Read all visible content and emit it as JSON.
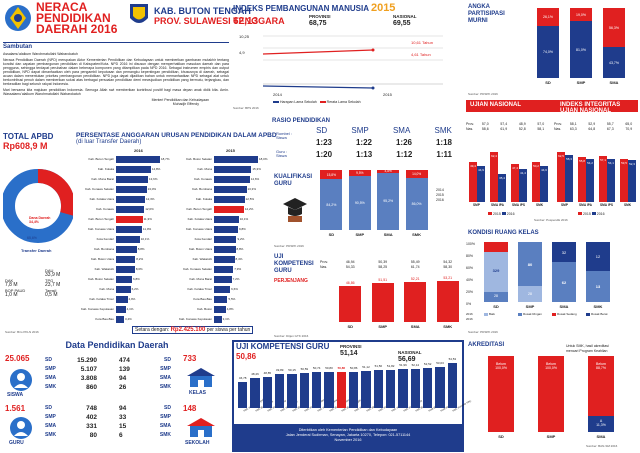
{
  "header": {
    "title_lines": [
      "NERACA",
      "PENDIDIKAN",
      "DAERAH 2016"
    ],
    "region": "KAB. BUTON TENGAH",
    "province": "PROV. SULAWESI TENGGARA"
  },
  "sambutan": {
    "title": "Sambutan",
    "greeting": "Assalamu'alaikum Warohmatullahi Wabarokatuh",
    "body": "Neraca Pendidikan Daerah (NPD) merupakan Aktor Kementerian Pendidikan dan Kebudayaan untuk memberikan gambaran mutakhir tentang kondisi dan capaian pembangunan pendidikan di Kabupaten/Kota. NPD 2016 ini disusun dengan memperhatikan masukan daerah dan para pengguna, sehingga terdapat perubahan dalam beberapa komponen yang ditampilkan pada NPD 2016. Sebagai instrumen empiris dan output pendidikan, NPD dapat dimanfaatkan oleh para pengambil keputusan dan pemangku kepentingan pendidikan, khususnya di daerah, sebagai acuan dalam menentukan prioritas pembangunan pendidikan. NPD juga dapat dijadikan bahan untuk memanfaatkan NPD sebagai alat untuk berkontribusi penuh dalam memberikan solusi atas berbagai persoalan pendidikan demi mewujudkan pendidikan yang bermutu, terjangkau, dan berkeadilan bagi seluruh rakyat Indonesia.",
    "closing": "Mari bersama kita majukan pendidikan Indonesia. Semoga Allah swt memberikan kontribusi positif bagi masa depan anak didik kita. Amin. Wassalamu'alaikum Warohmatullahi Wabarokatuh",
    "signature_1": "Menteri Pendidikan dan Kebudayaan",
    "signature_2": "Muhadjir Effendy"
  },
  "ipm": {
    "title": "INDEKS PEMBANGUNAN MANUSIA",
    "year": "2015",
    "kab_value": "62,13",
    "prov_label": "PROVINSI",
    "prov_value": "68,75",
    "nas_label": "NASIONAL",
    "nas_value": "69,55",
    "y_top": "10,25",
    "y_bottom": "4,9",
    "pt_a": "10,61",
    "pt_a_unit": "Tahun",
    "pt_b": "4,61",
    "pt_b_unit": "Tahun",
    "x_labels": [
      "2014",
      "2015"
    ],
    "legend": [
      "Harapan Lama Sekolah",
      "Rerata Lama Sekolah"
    ],
    "source": "Sumber: BPS 2016"
  },
  "apm": {
    "title_lines": [
      "ANGKA",
      "PARTISIPASI",
      "MURNI"
    ],
    "categories": [
      "SD",
      "SMP",
      "SMA"
    ],
    "top_labels": [
      "26,1%",
      "19,0%",
      "56,3%"
    ],
    "bottom_labels": [
      "74,0%",
      "81,0%",
      "43,7%"
    ],
    "source": "Sumber: PDSPK 2016"
  },
  "apbd": {
    "title": "TOTAL APBD",
    "value": "Rp608,9 M",
    "donut_top_label": "Dana Daerah",
    "donut_top_pct": "34,4%",
    "donut_bottom_label": "Transfer Daerah",
    "donut_bottom_pct": "65,6%",
    "rows": [
      {
        "label": "DAK",
        "value": "7,8 M"
      },
      {
        "label": "BOP PAUD",
        "value": "1,0 M"
      },
      {
        "label": "DAU",
        "value": "33,9 M"
      },
      {
        "label": "TPG",
        "value": "23,7 M"
      },
      {
        "label": "Tamsil",
        "value": "0,5 M"
      }
    ],
    "source": "Sumber: Biro PKLN 2016"
  },
  "persentase": {
    "title": "PERSENTASE ANGGARAN URUSAN PENDIDIKAN DALAM APBD",
    "subtitle": "(di luar Transfer Daerah)",
    "year_a": "2016",
    "year_b": "2015",
    "rows_a": [
      {
        "name": "Kab. Buton Tengah",
        "value": "18,7%"
      },
      {
        "name": "Kab. Kolaka",
        "value": "14,8%"
      },
      {
        "name": "Kab. Muna Barat",
        "value": "13,6%"
      },
      {
        "name": "Kab. Konawe Selatan",
        "value": "13,0%"
      },
      {
        "name": "Kab. Kolaka Utara",
        "value": "12,3%"
      },
      {
        "name": "Kab. Konawe",
        "value": "12,0%"
      },
      {
        "name": "Kab. Buton Tengah",
        "value": "11,3%"
      },
      {
        "name": "Kab. Konawe Utara",
        "value": "11,0%"
      },
      {
        "name": "Kota Kendari",
        "value": "10,1%"
      },
      {
        "name": "Kab. Bombana",
        "value": "8,8%"
      },
      {
        "name": "Kab. Buton Utara",
        "value": "8,2%"
      },
      {
        "name": "Kab. Wakatobi",
        "value": "8,0%"
      },
      {
        "name": "Kab. Buton Selatan",
        "value": "6,8%"
      },
      {
        "name": "Kab. Muna",
        "value": "6,2%"
      },
      {
        "name": "Kab. Kolaka Timur",
        "value": "4,9%"
      },
      {
        "name": "Kab. Konawe Kepulauan",
        "value": "4,1%"
      },
      {
        "name": "Kota Bau-Bau",
        "value": "3,4%"
      }
    ],
    "rows_b": [
      {
        "name": "Kab. Buton Selatan",
        "value": "18,0%"
      },
      {
        "name": "Kab. Muna",
        "value": "15,3%"
      },
      {
        "name": "Kab. Konawe",
        "value": "14,6%"
      },
      {
        "name": "Kab. Bombana",
        "value": "13,3%"
      },
      {
        "name": "Kab. Kolaka",
        "value": "12,5%"
      },
      {
        "name": "Kab. Buton Tengah",
        "value": "12,2%"
      },
      {
        "name": "Kab. Kolaka Utara",
        "value": "10,1%"
      },
      {
        "name": "Kab. Konawe Utara",
        "value": "9,8%"
      },
      {
        "name": "Kota Kendari",
        "value": "9,2%"
      },
      {
        "name": "Kab. Buton Utara",
        "value": "8,8%"
      },
      {
        "name": "Kab. Wakatobi",
        "value": "8,4%"
      },
      {
        "name": "Kab. Konawe Selatan",
        "value": "7,9%"
      },
      {
        "name": "Kab. Muna Barat",
        "value": "7,2%"
      },
      {
        "name": "Kab. Kolaka Timur",
        "value": "6,6%"
      },
      {
        "name": "Kota Bau-Bau",
        "value": "5,5%"
      },
      {
        "name": "Kab. Buton",
        "value": "4,8%"
      },
      {
        "name": "Kab. Konawe Kepulauan",
        "value": "3,1%"
      }
    ],
    "footer_label": "Setara dengan:",
    "footer_value": "Rp2.425.100",
    "footer_unit": "per siswa per tahun"
  },
  "rasio": {
    "title": "RASIO PENDIDIKAN",
    "row_labels": [
      "Rombel : Siswa",
      "Guru : Siswa"
    ],
    "levels": [
      "SD",
      "SMP",
      "SMA",
      "SMK"
    ],
    "rombel": [
      "1:23",
      "1:22",
      "1:26",
      "1:18"
    ],
    "guru": [
      "1:20",
      "1:13",
      "1:12",
      "1:11"
    ]
  },
  "kualifikasi": {
    "title_lines": [
      "KUALIFIKASI",
      "GURU"
    ],
    "categories": [
      "SD",
      "SMP",
      "SMA",
      "SMK"
    ],
    "top_labels": [
      "15,8%",
      "9,5%",
      "4,8%",
      "14,0%"
    ],
    "bottom_labels": [
      "84,2%",
      "90,5%",
      "95,2%",
      "86,0%"
    ],
    "legend": [
      "2014",
      "2015",
      "2016"
    ],
    "source": "Sumber: PDSPK 2016"
  },
  "uji_kompetensi": {
    "title_lines": [
      "UJI",
      "KOMPETENSI",
      "GURU"
    ],
    "subtitle": "PERJENJANG",
    "prov_label": "Prov.",
    "nas_label": "Nas.",
    "prov_values": [
      "46,94",
      "50,39",
      "55,49",
      "54,32"
    ],
    "nas_values": [
      "54,33",
      "58,25",
      "61,74",
      "58,30"
    ],
    "kab_values": [
      "46,86",
      "51,51",
      "52,21",
      "53,21"
    ],
    "categories": [
      "SD",
      "SMP",
      "SMA",
      "SMK"
    ],
    "source": "Sumber: Ditjen GTK 2016"
  },
  "ujian_nasional": {
    "title": "UJIAN NASIONAL",
    "levels": [
      "SMP",
      "SMA IPA",
      "SMA IPS",
      "SMK"
    ],
    "prov_label": "Prov.",
    "nas_label": "Nas.",
    "prov_values": [
      "57,0",
      "57,4",
      "48,9",
      "57,0"
    ],
    "nas_values": [
      "58,6",
      "61,9",
      "52,8",
      "58,1"
    ],
    "values_2015": [
      "49,4",
      "62,4",
      "47,4",
      "50,2"
    ],
    "values_2016": [
      "44,9",
      "35,4",
      "41,4",
      "44,6"
    ],
    "legend": [
      "2015",
      "2016"
    ],
    "source": "Sumber: Puspendik 2016"
  },
  "integritas": {
    "title_lines": [
      "INDEKS INTEGRITAS",
      "UJIAN NASIONAL"
    ],
    "levels": [
      "SMP",
      "SMA IPA",
      "SMA IPS",
      "SMK"
    ],
    "prov_label": "Prov.",
    "nas_label": "Nas.",
    "prov_values": [
      "58,1",
      "52,9",
      "55,7",
      "65,0"
    ],
    "nas_values": [
      "63,3",
      "64,8",
      "67,3",
      "70,9"
    ],
    "values_2015": [
      "62,5",
      "55,8",
      "57,1",
      "53,5"
    ],
    "values_2016": [
      "58,3",
      "54,2",
      "54,1",
      "52,3"
    ],
    "legend": [
      "2015",
      "2016"
    ]
  },
  "kondisi": {
    "title": "KONDISI RUANG KELAS",
    "categories": [
      "SD",
      "SMP",
      "SMA",
      "SMK"
    ],
    "y_ticks": [
      "100%",
      "80%",
      "60%",
      "40%",
      "20%",
      "0%"
    ],
    "values_a": [
      "28",
      "28",
      "",
      ""
    ],
    "values_b": [
      "329",
      "80",
      "62",
      "13"
    ],
    "values_c": [
      "",
      "",
      "32",
      "12"
    ],
    "legend": [
      "Baik",
      "Rusak Ringan",
      "Rusak Sedang",
      "Rusak Berat"
    ],
    "years": [
      "2016",
      "2016"
    ],
    "source": "Sumber: PDSPK 2016"
  },
  "data_pendidikan": {
    "title": "Data Pendidikan Daerah",
    "siswa_total": "25.065",
    "siswa_label": "SISWA",
    "siswa_levels": [
      "SD",
      "SMP",
      "SMA",
      "SMK"
    ],
    "siswa_values": [
      "15.290",
      "5.107",
      "3.808",
      "860"
    ],
    "kelas_total": "733",
    "kelas_label": "KELAS",
    "kelas_levels": [
      "SD",
      "SMP",
      "SMA",
      "SMK"
    ],
    "kelas_values": [
      "474",
      "139",
      "94",
      "26"
    ],
    "guru_total": "1.561",
    "guru_label": "GURU",
    "guru_levels": [
      "SD",
      "SMP",
      "SMA",
      "SMK"
    ],
    "guru_values": [
      "748",
      "402",
      "331",
      "80"
    ],
    "sekolah_total": "148",
    "sekolah_label": "SEKOLAH",
    "sekolah_levels": [
      "SD",
      "SMP",
      "SMA",
      "SMK"
    ],
    "sekolah_values": [
      "94",
      "33",
      "15",
      "6"
    ]
  },
  "ukg": {
    "title": "UJI KOMPETENSI GURU",
    "kab_value": "50,86",
    "prov_label": "PROVINSI",
    "prov_value": "51,14",
    "nas_label": "NASIONAL",
    "nas_value": "56,69",
    "bar_values": [
      "46,78",
      "48,46",
      "48,85",
      "49,89",
      "50,15",
      "50,59",
      "50,74",
      "50,80",
      "50,86",
      "50,86",
      "51,12",
      "51,56",
      "51,82",
      "51,96",
      "52,14",
      "52,52",
      "53,03",
      "54,53"
    ],
    "bar_highlight_index": 8,
    "bar_names": [
      "Kab. Konawe Kepulauan",
      "Kab. Buton Utara",
      "Kab. Kolaka Timur",
      "Kab. Muna Barat",
      "Kab. Bombana",
      "Kab. Konawe Selatan",
      "Kab. Konawe Utara",
      "Kab. Buton Selatan",
      "Kab. Buton Tengah",
      "Kab. Muna",
      "Kab. Wakatobi",
      "Kab. Kolaka",
      "Kab. Konawe",
      "Kab. Kolaka Utara",
      "Kab. Buton",
      "Kota Bau-Bau",
      "Kota Kendari",
      "Kab. Konawe Kep."
    ],
    "footer_1": "Diterbitkan oleh Kementerian Pendidikan dan Kebudayaan",
    "footer_2": "Jalan Jenderal Sudirman, Senayan, Jakarta 10270, Telepon: 021-5711144",
    "footer_3": "November 2016"
  },
  "akreditasi": {
    "title": "AKREDITASI",
    "note_1": "Untuk SMK, hasil akreditasi",
    "note_2": "mencari Program Keahlian",
    "categories": [
      "SD",
      "SMP",
      "SMA"
    ],
    "top_labels": [
      "Belum\n100,0%",
      "Belum\n100,0%",
      "Belum\n88,7%"
    ],
    "bottom_labels": [
      "",
      "",
      "A\n11,3%"
    ],
    "source": "Sumber: BAN-SM 2016"
  },
  "colors": {
    "red": "#e02020",
    "blue": "#1f3c8c",
    "lightblue": "#5a7fc0",
    "grey": "#888888"
  }
}
